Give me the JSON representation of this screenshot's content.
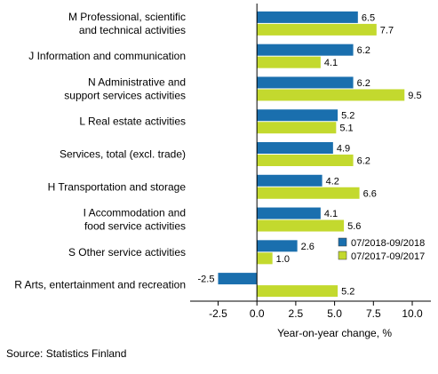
{
  "chart_data": {
    "type": "bar",
    "orientation": "horizontal",
    "categories": [
      [
        "M Professional, scientific",
        "and technical activities"
      ],
      [
        "J Information and communication"
      ],
      [
        "N Administrative and",
        "support services activities"
      ],
      [
        "L Real estate activities"
      ],
      [
        "Services, total (excl. trade)"
      ],
      [
        "H Transportation and storage"
      ],
      [
        "I Accommodation and",
        "food service activities"
      ],
      [
        "S Other service activities"
      ],
      [
        "R Arts, entertainment and recreation"
      ]
    ],
    "series": [
      {
        "name": "07/2018-09/2018",
        "color": "#1a6fae",
        "values": [
          6.5,
          6.2,
          6.2,
          5.2,
          4.9,
          4.2,
          4.1,
          2.6,
          -2.5
        ]
      },
      {
        "name": "07/2017-09/2017",
        "color": "#c3d92e",
        "values": [
          7.7,
          4.1,
          9.5,
          5.1,
          6.2,
          6.6,
          5.6,
          1.0,
          5.2
        ]
      }
    ],
    "value_labels": [
      [
        "6.5",
        "6.2",
        "6.2",
        "5.2",
        "4.9",
        "4.2",
        "4.1",
        "2.6",
        "-2.5"
      ],
      [
        "7.7",
        "4.1",
        "9.5",
        "5.1",
        "6.2",
        "6.6",
        "5.6",
        "1.0",
        "5.2"
      ]
    ],
    "xlim": [
      -4.3,
      11.2
    ],
    "xticks": [
      -2.5,
      0,
      2.5,
      5,
      7.5,
      10
    ],
    "xtick_labels": [
      "-2.5",
      "0.0",
      "2.5",
      "5.0",
      "7.5",
      "10.0"
    ],
    "xlabel": "Year-on-year change, %",
    "legend_position": "lower-right",
    "grid": false,
    "source": "Source: Statistics Finland"
  }
}
